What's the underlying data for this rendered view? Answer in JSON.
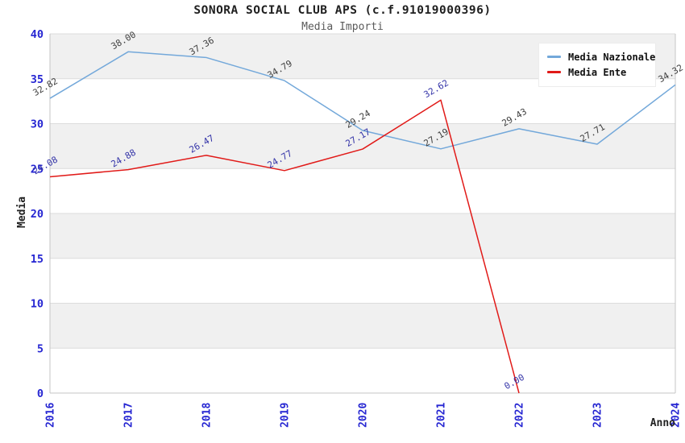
{
  "header": {
    "title": "SONORA SOCIAL CLUB APS (c.f.91019000396)",
    "subtitle": "Media Importi"
  },
  "chart_data": {
    "type": "line",
    "x": [
      2016,
      2017,
      2018,
      2019,
      2020,
      2021,
      2022,
      2023,
      2024
    ],
    "xlabel": "Anno",
    "ylabel": "Media",
    "ylim": [
      0,
      40
    ],
    "yticks": [
      0,
      5,
      10,
      15,
      20,
      25,
      30,
      35,
      40
    ],
    "grid": "alternating horizontal bands, gridline every 5 units",
    "legend_position": "top-right",
    "band_color": "#f0f0f0",
    "gridline_color": "#dcdcdc",
    "spine_color": "#c6c6c6",
    "tick_color": "#2626d2",
    "series": [
      {
        "name": "Media Nazionale",
        "color": "#73a8da",
        "label_color": "#3f3f3f",
        "values": [
          32.82,
          38.0,
          37.36,
          34.79,
          29.24,
          27.19,
          29.43,
          27.71,
          34.32
        ]
      },
      {
        "name": "Media Ente",
        "color": "#e11a18",
        "label_color": "#3434a8",
        "values": [
          24.08,
          24.88,
          26.47,
          24.77,
          27.17,
          32.62,
          0.0,
          null,
          null
        ]
      }
    ]
  }
}
